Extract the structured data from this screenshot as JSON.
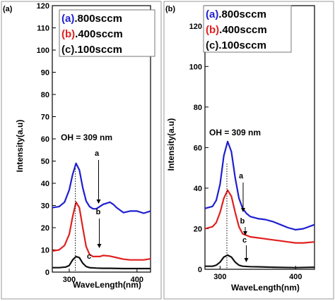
{
  "chart_data": [
    {
      "panel_label": "(a)",
      "type": "line",
      "xlabel": "WaveLength(nm)",
      "ylabel": "Intensity(a.u)",
      "xlim": [
        275,
        420
      ],
      "ylim": [
        0,
        120
      ],
      "xticks": [
        300,
        400
      ],
      "yticks": [
        0,
        10,
        20,
        30,
        40,
        50,
        60,
        70,
        80,
        90,
        100,
        110,
        120
      ],
      "grid": false,
      "legend_position": "top-left",
      "peak_label": "OH = 309 nm",
      "peak_x": 309,
      "series": [
        {
          "name": "(a).800sccm",
          "legend_prefix": "(a)",
          "legend_suffix": ".800sccm",
          "color": "#1f1fcf",
          "curve_label": "a",
          "x": [
            275,
            285,
            293,
            300,
            305,
            310,
            315,
            320,
            325,
            330,
            335,
            340,
            350,
            360,
            365,
            370,
            380,
            390,
            400,
            410,
            420
          ],
          "y": [
            29,
            29.5,
            31.5,
            37,
            44,
            49,
            46,
            38,
            32,
            29.5,
            28.5,
            28.5,
            30.5,
            31.5,
            30.5,
            29,
            26.8,
            27.5,
            27.5,
            26.5,
            27.5
          ]
        },
        {
          "name": "(b).400sccm",
          "legend_prefix": "(b)",
          "legend_suffix": ".400sccm",
          "color": "#e02020",
          "curve_label": "b",
          "x": [
            275,
            285,
            293,
            300,
            305,
            310,
            315,
            320,
            325,
            330,
            335,
            340,
            345,
            350,
            360,
            370,
            380,
            390,
            400,
            410,
            420
          ],
          "y": [
            9.5,
            10,
            12,
            17,
            25,
            31.5,
            29,
            20,
            11.5,
            8,
            7,
            7,
            7,
            7.5,
            7.2,
            6.5,
            5.8,
            5.5,
            5.5,
            5.5,
            6
          ]
        },
        {
          "name": "(c).100sccm",
          "legend_prefix": "(c)",
          "legend_suffix": ".100sccm",
          "color": "#111111",
          "curve_label": "c",
          "x": [
            275,
            285,
            295,
            300,
            305,
            310,
            315,
            320,
            325,
            330,
            340,
            350,
            360,
            380,
            400,
            420
          ],
          "y": [
            2,
            2,
            2.3,
            3,
            5.5,
            7,
            6.5,
            4,
            2.5,
            2,
            1.8,
            1.7,
            1.7,
            1.6,
            1.6,
            1.6
          ]
        }
      ]
    },
    {
      "panel_label": "(b)",
      "type": "line",
      "xlabel": "WaveLength(nm)",
      "ylabel": "Intensity(a.u)",
      "xlim": [
        280,
        425
      ],
      "ylim": [
        0,
        130
      ],
      "xticks": [
        300,
        400
      ],
      "yticks": [
        0,
        20,
        40,
        60,
        80,
        100,
        120
      ],
      "grid": false,
      "legend_position": "top-left",
      "peak_label": "OH = 309 nm",
      "peak_x": 309,
      "series": [
        {
          "name": "(a).800sccm",
          "legend_prefix": "(a)",
          "legend_suffix": ".800sccm",
          "color": "#1f1fcf",
          "curve_label": "a",
          "x": [
            280,
            290,
            295,
            300,
            305,
            310,
            315,
            320,
            325,
            330,
            335,
            340,
            350,
            360,
            370,
            380,
            390,
            400,
            410,
            425
          ],
          "y": [
            30,
            31,
            34,
            42,
            56,
            63,
            58,
            45,
            35,
            30,
            27.5,
            26,
            25,
            24.5,
            23.5,
            22,
            20.5,
            19.5,
            20,
            22
          ]
        },
        {
          "name": "(b).400sccm",
          "legend_prefix": "(b)",
          "legend_suffix": ".400sccm",
          "color": "#e02020",
          "curve_label": "b",
          "x": [
            280,
            290,
            295,
            300,
            305,
            310,
            315,
            320,
            325,
            330,
            340,
            350,
            360,
            370,
            380,
            390,
            400,
            410,
            425
          ],
          "y": [
            20,
            21,
            23,
            28,
            35,
            39,
            36,
            28,
            21,
            17.5,
            16,
            15.5,
            15,
            14.5,
            14,
            13.5,
            13,
            13,
            13.5
          ]
        },
        {
          "name": "(c).100sccm",
          "legend_prefix": "(c)",
          "legend_suffix": ".100sccm",
          "color": "#111111",
          "curve_label": "c",
          "x": [
            280,
            290,
            295,
            300,
            305,
            310,
            315,
            320,
            325,
            330,
            340,
            350,
            370,
            400,
            425
          ],
          "y": [
            1.5,
            1.5,
            2,
            3.5,
            6,
            7,
            6,
            3.5,
            2,
            1.5,
            1.3,
            1.2,
            1,
            0.8,
            1
          ]
        }
      ]
    }
  ]
}
